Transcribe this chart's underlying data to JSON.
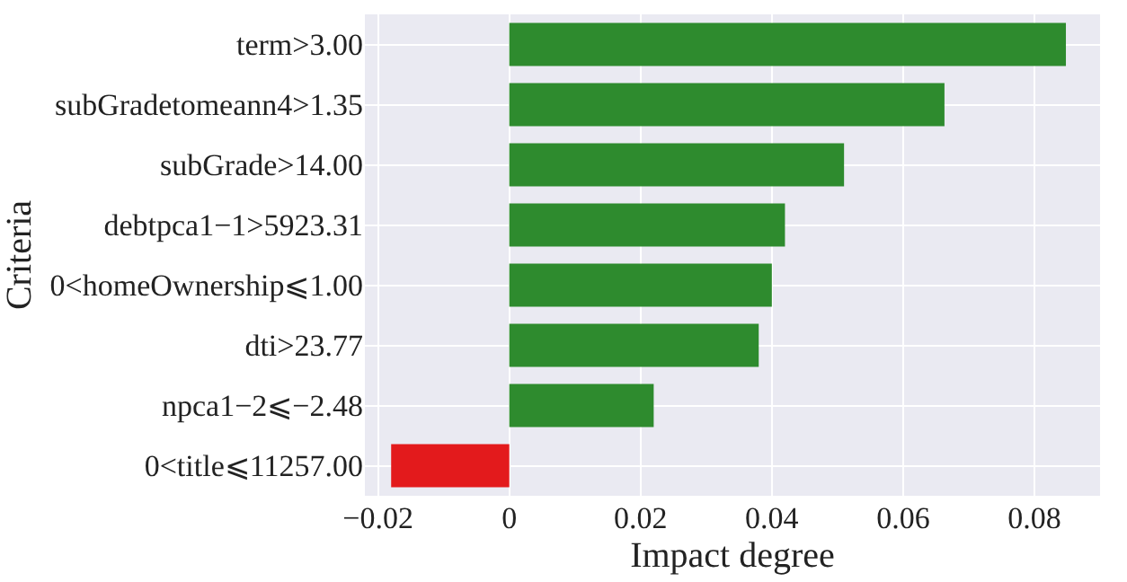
{
  "chart_data": {
    "type": "bar",
    "orientation": "horizontal",
    "xlabel": "Impact degree",
    "ylabel": "Criteria",
    "categories": [
      "term>3.00",
      "subGradetomeann4>1.35",
      "subGrade>14.00",
      "debtpca1−1>5923.31",
      "0<homeOwnership⩽1.00",
      "dti>23.77",
      "npca1−2⩽−2.48",
      "0<title⩽11257.00"
    ],
    "values": [
      0.0848,
      0.0663,
      0.051,
      0.042,
      0.04,
      0.038,
      0.022,
      -0.018
    ],
    "colors": [
      "#2e8b2e",
      "#2e8b2e",
      "#2e8b2e",
      "#2e8b2e",
      "#2e8b2e",
      "#2e8b2e",
      "#2e8b2e",
      "#e31a1c"
    ],
    "xlim": [
      -0.022,
      0.09
    ],
    "xticks": [
      {
        "value": -0.02,
        "label": "−0.02"
      },
      0,
      0.02,
      0.04,
      0.06,
      0.08
    ],
    "grid": true
  }
}
